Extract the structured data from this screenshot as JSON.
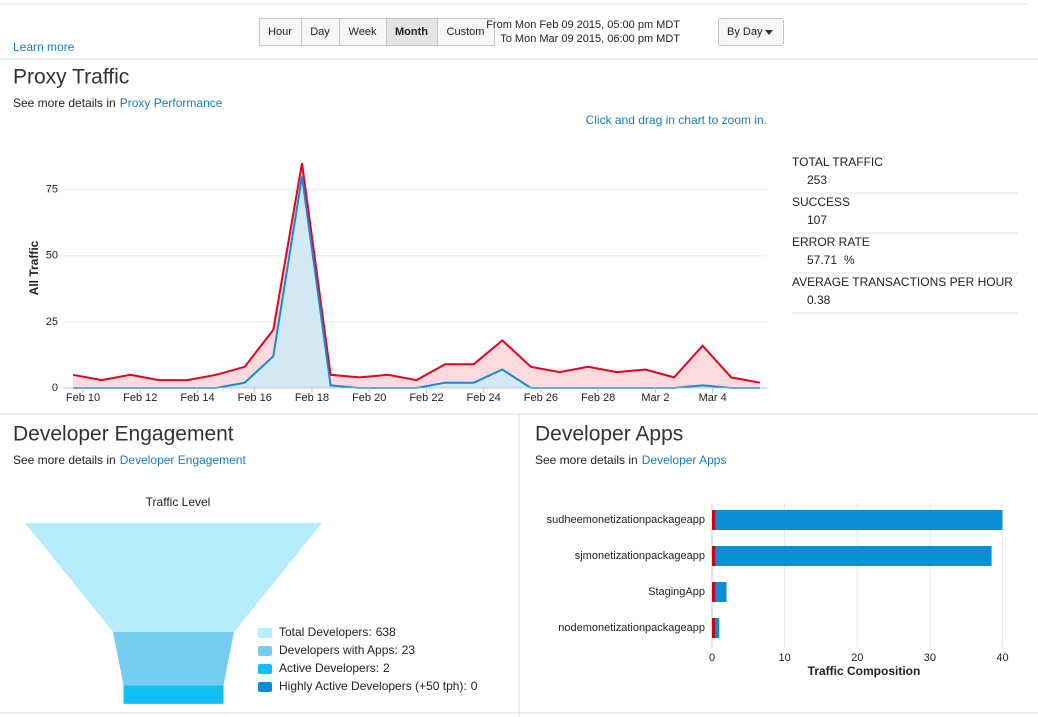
{
  "toolbar": {
    "learn_more": "Learn more",
    "buttons": [
      "Hour",
      "Day",
      "Week",
      "Month",
      "Custom"
    ],
    "selected": "Month",
    "from": "From Mon Feb 09 2015, 05:00 pm MDT",
    "to": "To Mon Mar 09 2015, 06:00 pm MDT",
    "group_by": "By Day"
  },
  "proxy": {
    "title": "Proxy Traffic",
    "details_prefix": "See more details in",
    "details_link": "Proxy Performance",
    "zoom_hint": "Click and drag in chart to zoom in.",
    "stats": [
      {
        "label": "TOTAL TRAFFIC",
        "value": 253
      },
      {
        "label": "SUCCESS",
        "value": 107
      },
      {
        "label": "ERROR RATE",
        "value": 57.71,
        "unit": "%"
      },
      {
        "label": "AVERAGE TRANSACTIONS PER HOUR",
        "value": 0.38
      }
    ]
  },
  "engagement": {
    "title": "Developer Engagement",
    "details_prefix": "See more details in",
    "details_link": "Developer Engagement"
  },
  "apps": {
    "title": "Developer Apps",
    "details_prefix": "See more details in",
    "details_link": "Developer Apps"
  },
  "chart_data": [
    {
      "type": "area",
      "ylabel": "All Traffic",
      "categories": [
        "Feb 10",
        null,
        "Feb 12",
        null,
        "Feb 14",
        null,
        "Feb 16",
        null,
        "Feb 18",
        null,
        "Feb 20",
        null,
        "Feb 22",
        null,
        "Feb 24",
        null,
        "Feb 26",
        null,
        "Feb 28",
        null,
        "Mar 2",
        null,
        "Mar 4",
        null,
        null
      ],
      "series": [
        {
          "color": "#e8001c",
          "fill": "#fdd3d7",
          "values": [
            5,
            3,
            5,
            3,
            3,
            5,
            8,
            22,
            85,
            5,
            4,
            5,
            3,
            9,
            9,
            18,
            8,
            6,
            8,
            6,
            7,
            4,
            16,
            4,
            2
          ]
        },
        {
          "color": "#1a88d0",
          "fill": "#cdeaf8",
          "values": [
            0,
            0,
            0,
            0,
            0,
            0,
            2,
            12,
            80,
            1,
            0,
            0,
            0,
            2,
            2,
            7,
            0,
            0,
            0,
            0,
            0,
            0,
            1,
            0,
            0
          ]
        }
      ],
      "ylim": [
        0,
        90
      ],
      "yticks": [
        0,
        25,
        50,
        75
      ],
      "grid": true
    },
    {
      "type": "funnel",
      "title": "Traffic Level",
      "categories": [
        "Total Developers:",
        "Developers with Apps:",
        "Active Developers:",
        "Highly Active Developers (+50 tph):"
      ],
      "values": [
        638,
        23,
        2,
        0
      ],
      "colors": [
        "#b5edfb",
        "#76cdef",
        "#12bff4",
        "#0a8fd6"
      ],
      "log_scale": true
    },
    {
      "type": "hbar",
      "stacked": true,
      "xlabel": "Traffic Composition",
      "categories": [
        "sudheemonetizationpackageapp",
        "sjmonetizationpackageapp",
        "StagingApp",
        "nodemonetizationpackageapp"
      ],
      "series": [
        {
          "color": "#d0021b",
          "values": [
            0.5,
            0.5,
            0.5,
            0.5
          ]
        },
        {
          "color": "#0a8fd6",
          "values": [
            39.5,
            38,
            1.5,
            0.5
          ]
        }
      ],
      "xlim": [
        0,
        42
      ],
      "xticks": [
        0,
        10,
        20,
        30,
        40
      ],
      "grid": true
    }
  ]
}
